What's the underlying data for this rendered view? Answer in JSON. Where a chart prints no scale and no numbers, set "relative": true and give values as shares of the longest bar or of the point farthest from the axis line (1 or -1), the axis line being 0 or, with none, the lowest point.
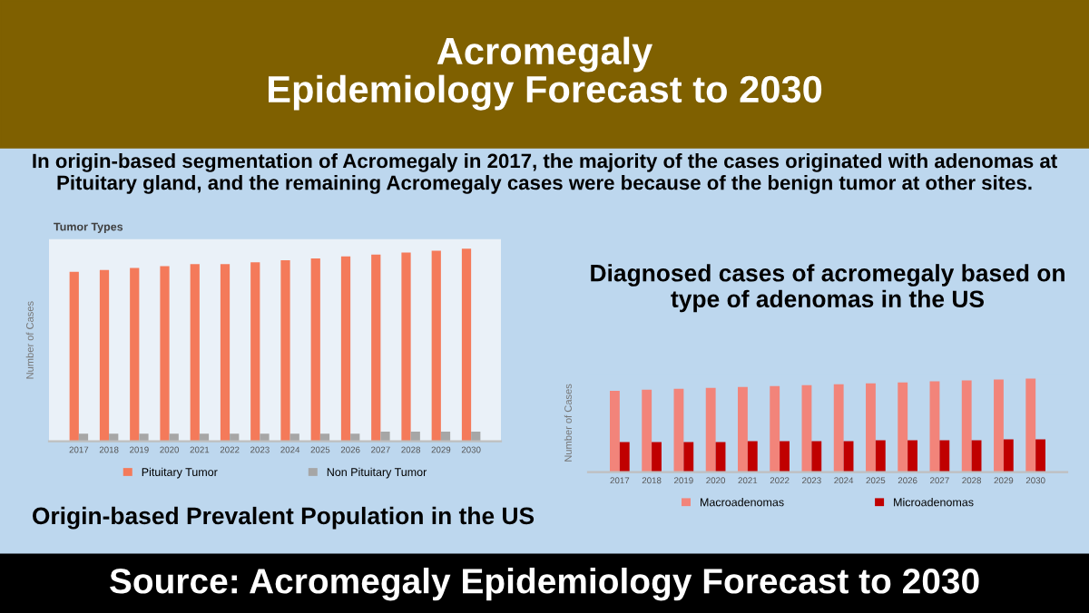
{
  "chart_data": [
    {
      "type": "other",
      "title": "Acromegaly\nEpidemiology Forecast to 2030",
      "subtitle": "In origin-based segmentation of Acromegaly in 2017, the majority of the cases originated with adenomas at Pituitary gland, and the remaining Acromegaly cases were because of the benign tumor at other sites.",
      "annotations": [
        "Source: Acromegaly Epidemiology Forecast to 2030"
      ]
    },
    {
      "type": "bar",
      "title": "Tumor Types",
      "ylabel": "Number of Cases",
      "relative": true,
      "legend": "bottom",
      "categories": [
        "2017",
        "2018",
        "2019",
        "2020",
        "2021",
        "2022",
        "2023",
        "2024",
        "2025",
        "2026",
        "2027",
        "2028",
        "2029",
        "2030"
      ],
      "series": [
        {
          "name": "Pituitary Tumor",
          "color": "#f47a5a",
          "values": [
            0.88,
            0.89,
            0.9,
            0.91,
            0.92,
            0.92,
            0.93,
            0.94,
            0.95,
            0.96,
            0.97,
            0.98,
            0.99,
            1
          ]
        },
        {
          "name": "Non Pituitary Tumor",
          "color": "#a6a6a6",
          "values": [
            0.04,
            0.04,
            0.04,
            0.04,
            0.04,
            0.04,
            0.04,
            0.04,
            0.04,
            0.04,
            0.05,
            0.05,
            0.05,
            0.05
          ]
        }
      ],
      "annotations": [
        "Origin-based Prevalent Population in the US"
      ]
    },
    {
      "type": "bar",
      "title": "Diagnosed cases of acromegaly based on type of adenomas in the US",
      "ylabel": "Number of Cases",
      "relative": true,
      "legend": "bottom",
      "categories": [
        "2017",
        "2018",
        "2019",
        "2020",
        "2021",
        "2022",
        "2023",
        "2024",
        "2025",
        "2026",
        "2027",
        "2028",
        "2029",
        "2030"
      ],
      "series": [
        {
          "name": "Macroadenomas",
          "color": "#f2847a",
          "values": [
            0.87,
            0.88,
            0.89,
            0.9,
            0.91,
            0.92,
            0.93,
            0.94,
            0.95,
            0.96,
            0.97,
            0.98,
            0.99,
            1
          ]
        },
        {
          "name": "Microadenomas",
          "color": "#c00000",
          "values": [
            0.32,
            0.32,
            0.32,
            0.32,
            0.33,
            0.33,
            0.33,
            0.33,
            0.34,
            0.34,
            0.34,
            0.34,
            0.35,
            0.35
          ]
        }
      ]
    }
  ]
}
